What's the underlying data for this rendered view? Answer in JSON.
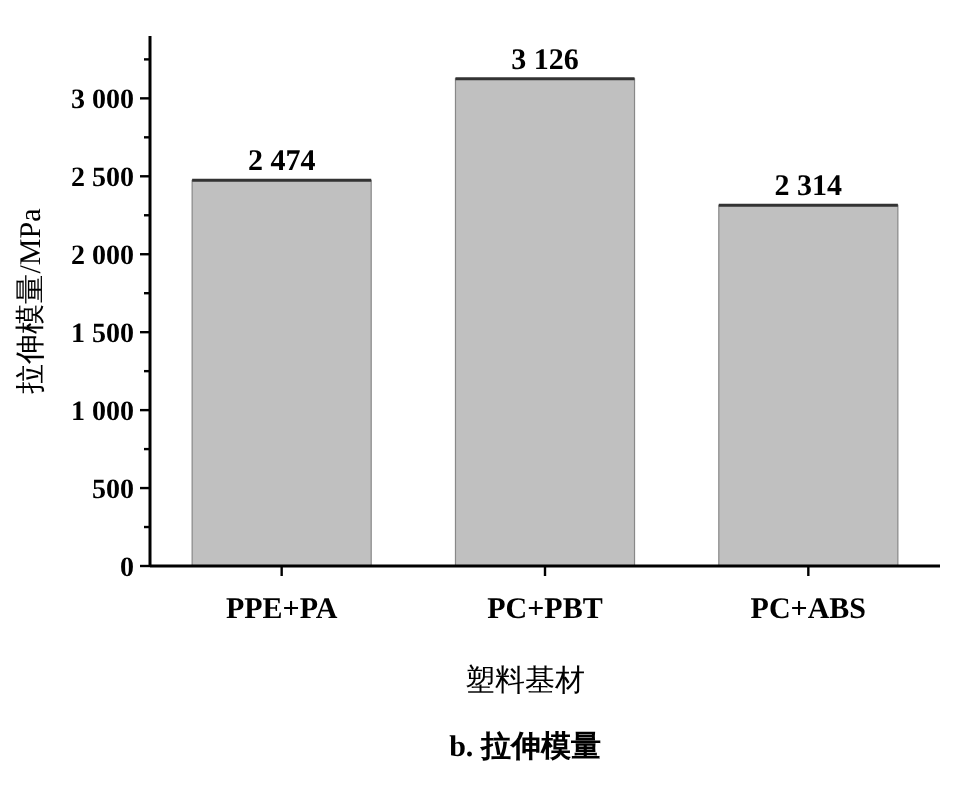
{
  "chart_data": {
    "type": "bar",
    "xlabel": "塑料基材",
    "ylabel": "拉伸模量/MPa",
    "categories": [
      "PPE+PA",
      "PC+PBT",
      "PC+ABS"
    ],
    "values": [
      2474,
      3126,
      2314
    ],
    "value_labels": [
      "2 474",
      "3 126",
      "2 314"
    ],
    "color": "#c0c0c0",
    "ylim": [
      0,
      3400
    ],
    "yticks": [
      {
        "value": 0,
        "label": "0"
      },
      {
        "value": 250,
        "label": null
      },
      {
        "value": 500,
        "label": "500"
      },
      {
        "value": 750,
        "label": null
      },
      {
        "value": 1000,
        "label": "1 000"
      },
      {
        "value": 1250,
        "label": null
      },
      {
        "value": 1500,
        "label": "1 500"
      },
      {
        "value": 1750,
        "label": null
      },
      {
        "value": 2000,
        "label": "2 000"
      },
      {
        "value": 2250,
        "label": null
      },
      {
        "value": 2500,
        "label": "2 500"
      },
      {
        "value": 2750,
        "label": null
      },
      {
        "value": 3000,
        "label": "3 000"
      },
      {
        "value": 3250,
        "label": null
      }
    ],
    "annotations": [
      "b. 拉伸模量"
    ]
  }
}
